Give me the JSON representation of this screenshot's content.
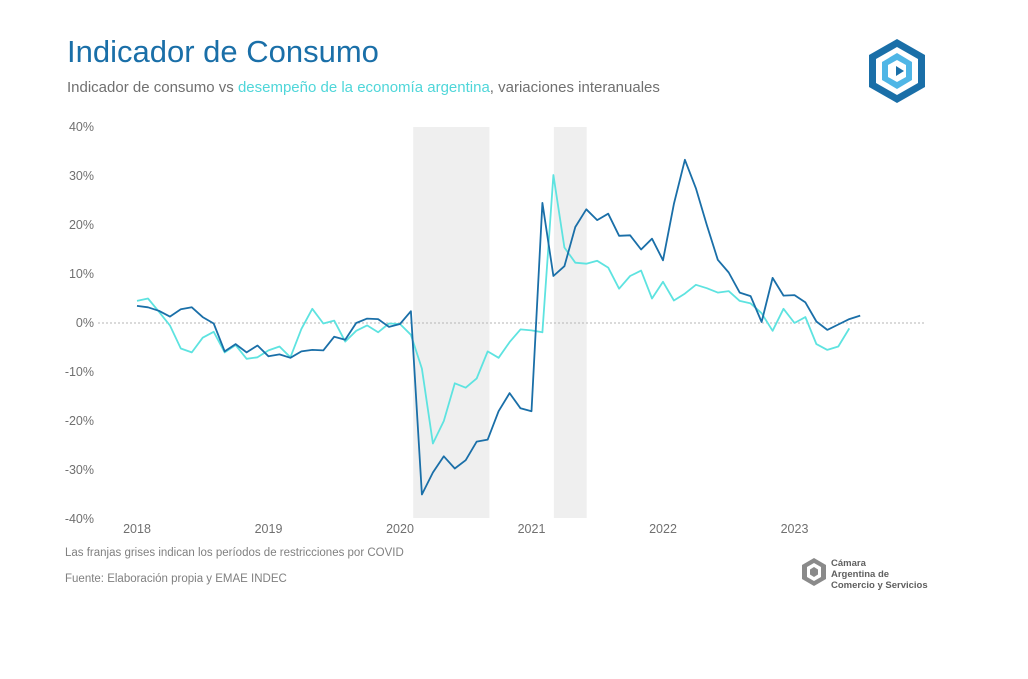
{
  "header": {
    "title": "Indicador de Consumo",
    "subtitle_a": "Indicador de consumo vs ",
    "subtitle_b": "desempeño de la economía argentina",
    "subtitle_c": ", variaciones interanuales"
  },
  "footer": {
    "note": "Las franjas grises indican los períodos de restricciones por COVID",
    "source": "Fuente: Elaboración propia y EMAE INDEC"
  },
  "brand": {
    "line1": "Cámara",
    "line2": "Argentina de",
    "line3": "Comercio y Servicios"
  },
  "colors": {
    "consumo": "#1a6fa8",
    "emae": "#5ee3e0",
    "band": "#efefef",
    "zero_line": "#b5b5b5"
  },
  "chart_data": {
    "type": "line",
    "title": "Indicador de Consumo",
    "xlabel": "",
    "ylabel": "",
    "ylim": [
      -40,
      40
    ],
    "xlim": [
      2018.0,
      2023.917
    ],
    "y_ticks": [
      "40%",
      "30%",
      "20%",
      "10%",
      "0%",
      "-10%",
      "-20%",
      "-30%",
      "-40%"
    ],
    "x_ticks": [
      "2018",
      "2019",
      "2020",
      "2021",
      "2022",
      "2023"
    ],
    "grid": false,
    "legend": "none",
    "shaded_periods": [
      [
        2020.1,
        2020.68
      ],
      [
        2021.17,
        2021.42
      ]
    ],
    "series": [
      {
        "name": "Indicador de consumo",
        "color": "#1a6fa8",
        "x_start": 2018.0,
        "step": 0.08333,
        "values": [
          3.5,
          3.2,
          2.5,
          1.3,
          2.8,
          3.2,
          1.2,
          -0.1,
          -5.8,
          -4.3,
          -6.0,
          -4.6,
          -6.8,
          -6.4,
          -7.1,
          -5.8,
          -5.5,
          -5.6,
          -2.8,
          -3.4,
          0.0,
          0.9,
          0.8,
          -0.8,
          -0.2,
          2.4,
          -35.0,
          -30.5,
          -27.2,
          -29.7,
          -28.0,
          -24.2,
          -23.8,
          -18.0,
          -14.3,
          -17.4,
          -18.0,
          24.5,
          9.6,
          11.6,
          19.6,
          23.2,
          21.0,
          22.3,
          17.8,
          17.9,
          15.0,
          17.2,
          12.8,
          24.3,
          33.3,
          27.5,
          20.0,
          12.9,
          10.3,
          6.2,
          5.5,
          0.2,
          9.2,
          5.6,
          5.7,
          4.2,
          0.3,
          -1.4,
          -0.3,
          0.8,
          1.5
        ]
      },
      {
        "name": "desempeño de la economía argentina",
        "color": "#5ee3e0",
        "x_start": 2018.0,
        "step": 0.08333,
        "values": [
          4.5,
          5.0,
          2.3,
          -0.5,
          -5.2,
          -6.0,
          -3.0,
          -1.8,
          -6.0,
          -4.5,
          -7.3,
          -7.0,
          -5.6,
          -4.8,
          -7.0,
          -1.2,
          2.9,
          -0.1,
          0.5,
          -3.8,
          -1.6,
          -0.5,
          -1.9,
          -0.1,
          -0.2,
          -2.4,
          -9.3,
          -24.6,
          -20.0,
          -12.3,
          -13.2,
          -11.3,
          -5.8,
          -7.1,
          -3.9,
          -1.3,
          -1.5,
          -1.9,
          30.2,
          15.4,
          12.3,
          12.1,
          12.7,
          11.3,
          7.0,
          9.6,
          10.7,
          5.0,
          8.4,
          4.6,
          6.0,
          7.8,
          7.1,
          6.2,
          6.5,
          4.5,
          4.0,
          2.0,
          -1.6,
          2.9,
          0.0,
          1.2,
          -4.3,
          -5.5,
          -4.8,
          -1.1
        ]
      }
    ]
  }
}
